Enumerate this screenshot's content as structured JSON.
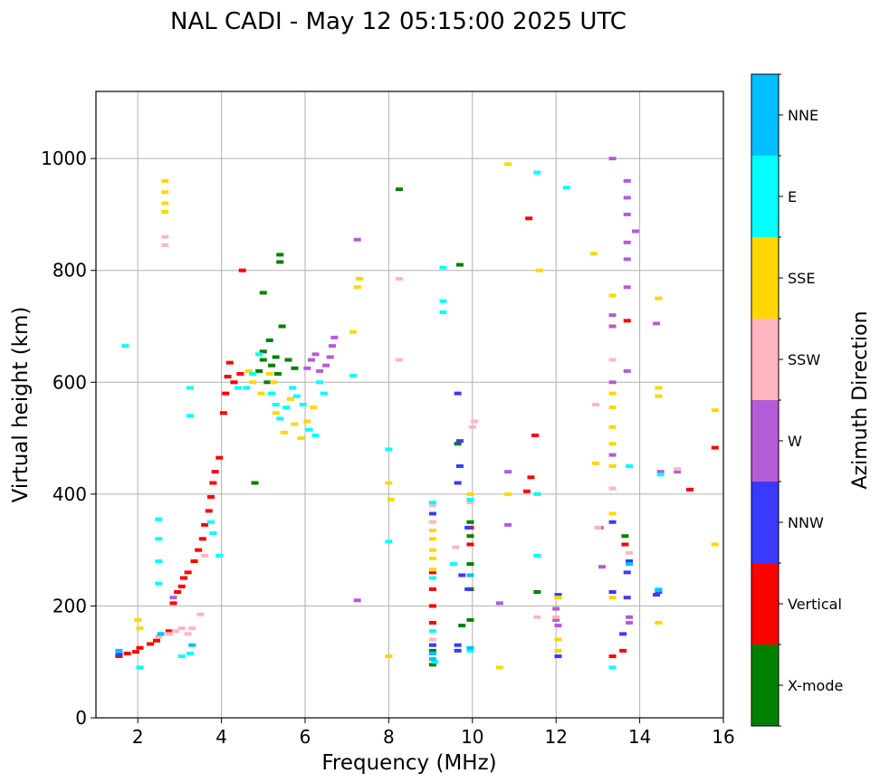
{
  "chart_data": {
    "type": "scatter",
    "title": "NAL CADI - May 12 05:15:00 2025 UTC",
    "xlabel": "Frequency (MHz)",
    "ylabel": "Virtual height (km)",
    "xlim": [
      1,
      16
    ],
    "ylim": [
      0,
      1120
    ],
    "xticks": [
      2,
      4,
      6,
      8,
      10,
      12,
      14,
      16
    ],
    "yticks": [
      0,
      200,
      400,
      600,
      800,
      1000
    ],
    "grid": true,
    "colorbar": {
      "label": "Azimuth Direction",
      "categories": [
        {
          "name": "X-mode",
          "color": "#008000"
        },
        {
          "name": "Vertical",
          "color": "#ff0000"
        },
        {
          "name": "NNW",
          "color": "#3a3aff"
        },
        {
          "name": "W",
          "color": "#b65bd6"
        },
        {
          "name": "SSW",
          "color": "#ffb6c1"
        },
        {
          "name": "SSE",
          "color": "#ffd700"
        },
        {
          "name": "E",
          "color": "#00ffff"
        },
        {
          "name": "NNE",
          "color": "#00bfff"
        }
      ]
    },
    "series": [
      {
        "name": "Vertical",
        "points": [
          [
            1.55,
            110
          ],
          [
            1.75,
            115
          ],
          [
            1.95,
            118
          ],
          [
            2.05,
            125
          ],
          [
            2.3,
            132
          ],
          [
            2.45,
            138
          ],
          [
            2.75,
            155
          ],
          [
            2.85,
            205
          ],
          [
            2.95,
            225
          ],
          [
            3.05,
            235
          ],
          [
            3.1,
            250
          ],
          [
            3.2,
            260
          ],
          [
            3.35,
            280
          ],
          [
            3.45,
            300
          ],
          [
            3.55,
            320
          ],
          [
            3.6,
            345
          ],
          [
            3.7,
            370
          ],
          [
            3.75,
            395
          ],
          [
            3.8,
            420
          ],
          [
            3.85,
            440
          ],
          [
            3.95,
            465
          ],
          [
            4.05,
            545
          ],
          [
            4.1,
            580
          ],
          [
            4.15,
            610
          ],
          [
            4.3,
            600
          ],
          [
            4.45,
            615
          ],
          [
            4.5,
            800
          ],
          [
            4.2,
            635
          ],
          [
            9.05,
            170
          ],
          [
            9.05,
            200
          ],
          [
            9.05,
            230
          ],
          [
            9.05,
            260
          ],
          [
            9.95,
            230
          ],
          [
            9.95,
            310
          ],
          [
            9.95,
            340
          ],
          [
            11.3,
            405
          ],
          [
            11.4,
            430
          ],
          [
            11.5,
            505
          ],
          [
            11.35,
            893
          ],
          [
            13.35,
            110
          ],
          [
            13.6,
            120
          ],
          [
            13.65,
            310
          ],
          [
            13.7,
            710
          ],
          [
            15.2,
            408
          ],
          [
            15.8,
            483
          ]
        ]
      },
      {
        "name": "X-mode",
        "points": [
          [
            4.8,
            420
          ],
          [
            4.9,
            620
          ],
          [
            5.0,
            640
          ],
          [
            5.0,
            655
          ],
          [
            5.1,
            600
          ],
          [
            5.15,
            675
          ],
          [
            5.2,
            630
          ],
          [
            5.3,
            645
          ],
          [
            5.35,
            615
          ],
          [
            5.45,
            700
          ],
          [
            5.6,
            640
          ],
          [
            5.75,
            625
          ],
          [
            5.4,
            815
          ],
          [
            5.4,
            828
          ],
          [
            5.0,
            760
          ],
          [
            8.25,
            945
          ],
          [
            9.05,
            95
          ],
          [
            9.05,
            120
          ],
          [
            9.75,
            165
          ],
          [
            9.95,
            175
          ],
          [
            9.95,
            230
          ],
          [
            9.95,
            275
          ],
          [
            9.95,
            325
          ],
          [
            9.95,
            350
          ],
          [
            9.65,
            490
          ],
          [
            9.7,
            810
          ],
          [
            11.55,
            225
          ],
          [
            13.65,
            325
          ]
        ]
      },
      {
        "name": "NNW",
        "points": [
          [
            1.55,
            113
          ],
          [
            9.05,
            365
          ],
          [
            9.05,
            130
          ],
          [
            9.65,
            120
          ],
          [
            9.65,
            130
          ],
          [
            9.65,
            420
          ],
          [
            9.7,
            450
          ],
          [
            9.7,
            495
          ],
          [
            9.65,
            580
          ],
          [
            9.75,
            255
          ],
          [
            12.05,
            220
          ],
          [
            12.05,
            110
          ],
          [
            13.35,
            225
          ],
          [
            13.35,
            350
          ],
          [
            13.6,
            150
          ],
          [
            13.7,
            215
          ],
          [
            13.7,
            260
          ],
          [
            13.75,
            280
          ],
          [
            14.4,
            220
          ],
          [
            14.45,
            225
          ],
          [
            9.9,
            230
          ],
          [
            9.9,
            340
          ]
        ]
      },
      {
        "name": "W",
        "points": [
          [
            6.05,
            625
          ],
          [
            6.15,
            640
          ],
          [
            6.25,
            650
          ],
          [
            6.35,
            620
          ],
          [
            6.5,
            630
          ],
          [
            6.6,
            645
          ],
          [
            6.65,
            665
          ],
          [
            6.7,
            680
          ],
          [
            7.25,
            855
          ],
          [
            7.25,
            210
          ],
          [
            10.65,
            205
          ],
          [
            10.85,
            345
          ],
          [
            10.85,
            440
          ],
          [
            12.0,
            175
          ],
          [
            12.0,
            195
          ],
          [
            12.05,
            165
          ],
          [
            13.1,
            270
          ],
          [
            13.05,
            340
          ],
          [
            13.35,
            1000
          ],
          [
            13.35,
            700
          ],
          [
            13.35,
            720
          ],
          [
            13.35,
            600
          ],
          [
            13.35,
            470
          ],
          [
            13.7,
            960
          ],
          [
            13.7,
            930
          ],
          [
            13.7,
            900
          ],
          [
            13.7,
            850
          ],
          [
            13.7,
            820
          ],
          [
            13.7,
            770
          ],
          [
            13.7,
            620
          ],
          [
            13.75,
            170
          ],
          [
            13.75,
            180
          ],
          [
            13.9,
            870
          ],
          [
            14.5,
            440
          ],
          [
            14.9,
            440
          ],
          [
            14.4,
            705
          ],
          [
            2.85,
            215
          ]
        ]
      },
      {
        "name": "SSW",
        "points": [
          [
            2.5,
            145
          ],
          [
            2.75,
            150
          ],
          [
            2.9,
            155
          ],
          [
            3.05,
            160
          ],
          [
            3.2,
            150
          ],
          [
            3.3,
            160
          ],
          [
            3.5,
            185
          ],
          [
            3.6,
            290
          ],
          [
            2.65,
            860
          ],
          [
            2.65,
            845
          ],
          [
            8.25,
            640
          ],
          [
            8.25,
            785
          ],
          [
            9.95,
            385
          ],
          [
            10.0,
            520
          ],
          [
            10.05,
            530
          ],
          [
            9.05,
            105
          ],
          [
            9.05,
            140
          ],
          [
            9.05,
            350
          ],
          [
            9.6,
            305
          ],
          [
            9.05,
            380
          ],
          [
            11.55,
            180
          ],
          [
            12.0,
            180
          ],
          [
            12.05,
            215
          ],
          [
            12.95,
            560
          ],
          [
            13.0,
            340
          ],
          [
            13.35,
            640
          ],
          [
            13.35,
            410
          ],
          [
            13.75,
            295
          ],
          [
            14.9,
            445
          ]
        ]
      },
      {
        "name": "SSE",
        "points": [
          [
            2.65,
            960
          ],
          [
            2.65,
            940
          ],
          [
            2.65,
            920
          ],
          [
            2.65,
            905
          ],
          [
            2.05,
            160
          ],
          [
            2.0,
            175
          ],
          [
            4.65,
            620
          ],
          [
            4.75,
            600
          ],
          [
            4.95,
            580
          ],
          [
            5.15,
            615
          ],
          [
            5.25,
            600
          ],
          [
            5.3,
            545
          ],
          [
            5.5,
            510
          ],
          [
            5.65,
            570
          ],
          [
            5.75,
            525
          ],
          [
            5.9,
            500
          ],
          [
            6.05,
            530
          ],
          [
            6.2,
            555
          ],
          [
            7.15,
            690
          ],
          [
            7.25,
            770
          ],
          [
            7.3,
            785
          ],
          [
            8.0,
            420
          ],
          [
            8.05,
            390
          ],
          [
            8.0,
            110
          ],
          [
            9.05,
            335
          ],
          [
            9.05,
            320
          ],
          [
            9.05,
            300
          ],
          [
            9.05,
            285
          ],
          [
            9.05,
            265
          ],
          [
            9.95,
            400
          ],
          [
            10.65,
            90
          ],
          [
            10.85,
            400
          ],
          [
            10.85,
            990
          ],
          [
            11.6,
            800
          ],
          [
            12.05,
            215
          ],
          [
            12.05,
            140
          ],
          [
            12.05,
            120
          ],
          [
            12.9,
            830
          ],
          [
            12.95,
            455
          ],
          [
            13.35,
            755
          ],
          [
            13.35,
            580
          ],
          [
            13.35,
            555
          ],
          [
            13.35,
            520
          ],
          [
            13.35,
            490
          ],
          [
            13.35,
            450
          ],
          [
            13.35,
            365
          ],
          [
            13.35,
            215
          ],
          [
            14.45,
            170
          ],
          [
            14.45,
            575
          ],
          [
            14.45,
            590
          ],
          [
            14.45,
            750
          ],
          [
            15.8,
            310
          ],
          [
            15.8,
            550
          ]
        ]
      },
      {
        "name": "E",
        "points": [
          [
            1.7,
            665
          ],
          [
            2.05,
            90
          ],
          [
            2.5,
            240
          ],
          [
            2.5,
            280
          ],
          [
            2.5,
            320
          ],
          [
            2.5,
            355
          ],
          [
            3.05,
            110
          ],
          [
            3.25,
            115
          ],
          [
            3.25,
            590
          ],
          [
            3.25,
            540
          ],
          [
            3.75,
            350
          ],
          [
            3.8,
            330
          ],
          [
            3.95,
            290
          ],
          [
            4.4,
            590
          ],
          [
            4.6,
            590
          ],
          [
            4.75,
            615
          ],
          [
            4.9,
            650
          ],
          [
            5.2,
            580
          ],
          [
            5.3,
            560
          ],
          [
            5.4,
            535
          ],
          [
            5.55,
            555
          ],
          [
            5.7,
            590
          ],
          [
            5.8,
            575
          ],
          [
            5.95,
            560
          ],
          [
            6.1,
            515
          ],
          [
            6.25,
            505
          ],
          [
            6.35,
            600
          ],
          [
            6.45,
            580
          ],
          [
            7.15,
            612
          ],
          [
            8.0,
            315
          ],
          [
            8.0,
            480
          ],
          [
            9.05,
            385
          ],
          [
            9.05,
            250
          ],
          [
            9.05,
            155
          ],
          [
            9.05,
            115
          ],
          [
            9.1,
            100
          ],
          [
            9.55,
            275
          ],
          [
            9.95,
            120
          ],
          [
            9.95,
            390
          ],
          [
            11.55,
            975
          ],
          [
            11.55,
            290
          ],
          [
            11.55,
            400
          ],
          [
            12.25,
            948
          ],
          [
            13.35,
            90
          ],
          [
            13.75,
            450
          ],
          [
            14.45,
            230
          ],
          [
            14.5,
            435
          ],
          [
            9.3,
            805
          ],
          [
            9.3,
            745
          ],
          [
            9.3,
            725
          ]
        ]
      },
      {
        "name": "NNE",
        "points": [
          [
            1.55,
            120
          ],
          [
            2.55,
            150
          ],
          [
            3.3,
            130
          ],
          [
            9.05,
            105
          ],
          [
            9.05,
            115
          ],
          [
            9.95,
            255
          ],
          [
            9.95,
            125
          ],
          [
            13.75,
            275
          ],
          [
            14.45,
            228
          ]
        ]
      }
    ]
  }
}
